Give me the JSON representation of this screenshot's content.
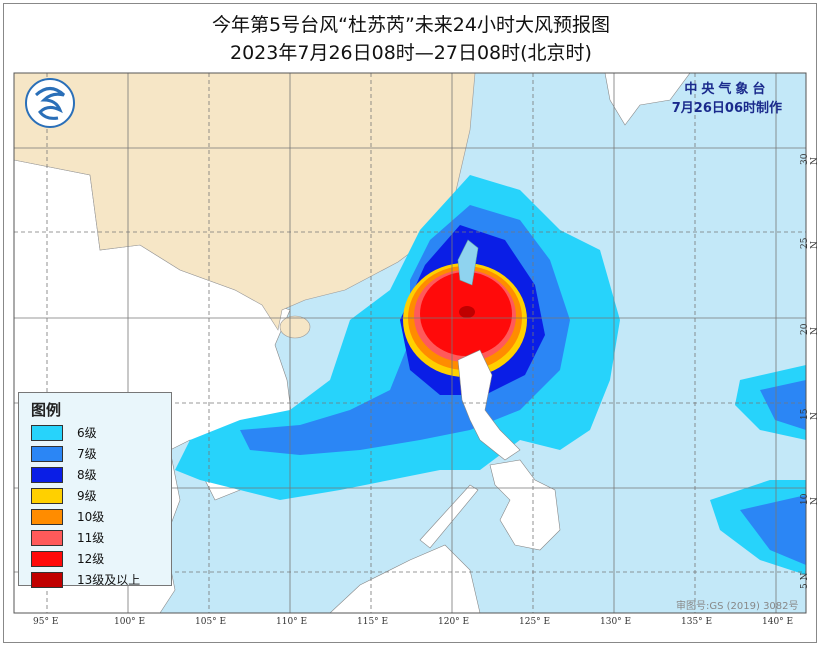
{
  "title": {
    "line1": "今年第5号台风“杜苏芮”未来24小时大风预报图",
    "line2": "2023年7月26日08时—27日08时(北京时)"
  },
  "agency": {
    "name": "中央气象台",
    "issued": "7月26日06时制作"
  },
  "logo": "cma-logo-icon",
  "legend": {
    "title": "图例",
    "items": [
      {
        "label": "6级",
        "color": "#27d3fb"
      },
      {
        "label": "7级",
        "color": "#2b86f5"
      },
      {
        "label": "8级",
        "color": "#0a1ee6"
      },
      {
        "label": "9级",
        "color": "#ffd000"
      },
      {
        "label": "10级",
        "color": "#ff8c00"
      },
      {
        "label": "11级",
        "color": "#ff5a5a"
      },
      {
        "label": "12级",
        "color": "#ff0a0a"
      },
      {
        "label": "13级及以上",
        "color": "#c00000"
      }
    ]
  },
  "lon_labels": [
    "95° E",
    "100° E",
    "105° E",
    "110° E",
    "115° E",
    "120° E",
    "125° E",
    "130° E",
    "135° E",
    "140° E"
  ],
  "lat_labels": [
    "30 N",
    "25 N",
    "20 N",
    "15 N",
    "10 N",
    "5 N"
  ],
  "approval_number": "审图号:GS (2019) 3082号",
  "colors": {
    "sea": "#c3e8f8",
    "china_land": "#f6e6c6",
    "other_land": "#ffffff"
  }
}
